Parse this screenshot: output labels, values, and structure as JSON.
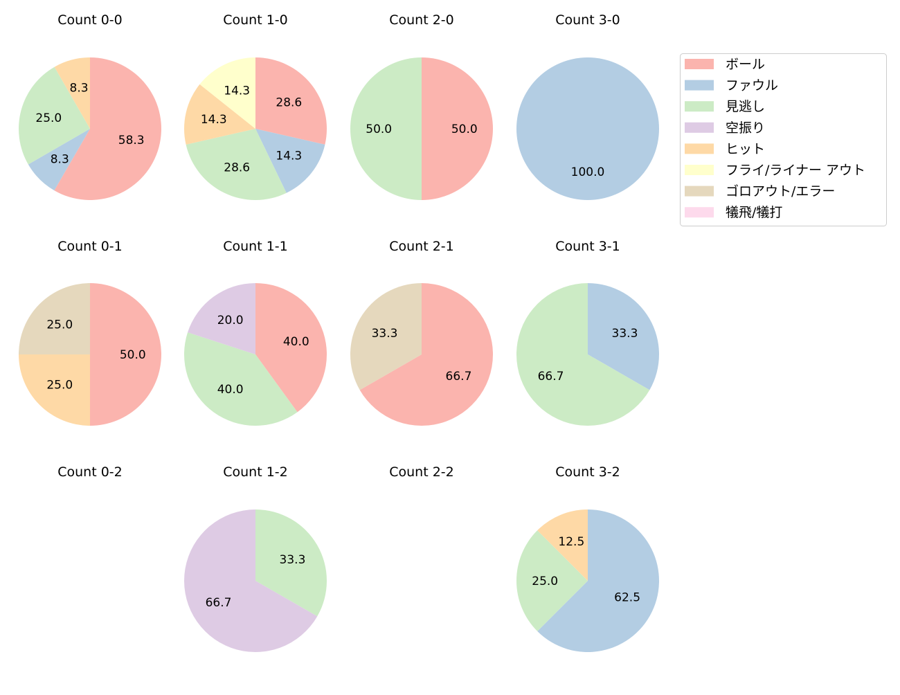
{
  "chart_data": {
    "type": "pie",
    "categories": [
      "ボール",
      "ファウル",
      "見逃し",
      "空振り",
      "ヒット",
      "フライ/ライナー アウト",
      "ゴロアウト/エラー",
      "犠飛/犠打"
    ],
    "colors": [
      "#fbb4ae",
      "#b3cde3",
      "#ccebc5",
      "#decbe4",
      "#fed9a6",
      "#ffffcc",
      "#e5d8bd",
      "#fddaec"
    ],
    "legend_position": "top-right",
    "start_angle": 90,
    "direction": "clockwise",
    "pies": [
      {
        "title": "Count 0-0",
        "slices": [
          {
            "cat": 0,
            "value": 58.3
          },
          {
            "cat": 1,
            "value": 8.3
          },
          {
            "cat": 2,
            "value": 25.0
          },
          {
            "cat": 4,
            "value": 8.3
          }
        ]
      },
      {
        "title": "Count 1-0",
        "slices": [
          {
            "cat": 0,
            "value": 28.6
          },
          {
            "cat": 1,
            "value": 14.3
          },
          {
            "cat": 2,
            "value": 28.6
          },
          {
            "cat": 4,
            "value": 14.3
          },
          {
            "cat": 5,
            "value": 14.3
          }
        ]
      },
      {
        "title": "Count 2-0",
        "slices": [
          {
            "cat": 0,
            "value": 50.0
          },
          {
            "cat": 2,
            "value": 50.0
          }
        ]
      },
      {
        "title": "Count 3-0",
        "slices": [
          {
            "cat": 1,
            "value": 100.0
          }
        ]
      },
      {
        "title": "Count 0-1",
        "slices": [
          {
            "cat": 0,
            "value": 50.0
          },
          {
            "cat": 4,
            "value": 25.0
          },
          {
            "cat": 6,
            "value": 25.0
          }
        ]
      },
      {
        "title": "Count 1-1",
        "slices": [
          {
            "cat": 0,
            "value": 40.0
          },
          {
            "cat": 2,
            "value": 40.0
          },
          {
            "cat": 3,
            "value": 20.0
          }
        ]
      },
      {
        "title": "Count 2-1",
        "slices": [
          {
            "cat": 0,
            "value": 66.7
          },
          {
            "cat": 6,
            "value": 33.3
          }
        ]
      },
      {
        "title": "Count 3-1",
        "slices": [
          {
            "cat": 1,
            "value": 33.3
          },
          {
            "cat": 2,
            "value": 66.7
          }
        ]
      },
      {
        "title": "Count 0-2",
        "slices": []
      },
      {
        "title": "Count 1-2",
        "slices": [
          {
            "cat": 2,
            "value": 33.3
          },
          {
            "cat": 3,
            "value": 66.7
          }
        ]
      },
      {
        "title": "Count 2-2",
        "slices": []
      },
      {
        "title": "Count 3-2",
        "slices": [
          {
            "cat": 1,
            "value": 62.5
          },
          {
            "cat": 2,
            "value": 25.0
          },
          {
            "cat": 4,
            "value": 12.5
          }
        ]
      }
    ]
  }
}
